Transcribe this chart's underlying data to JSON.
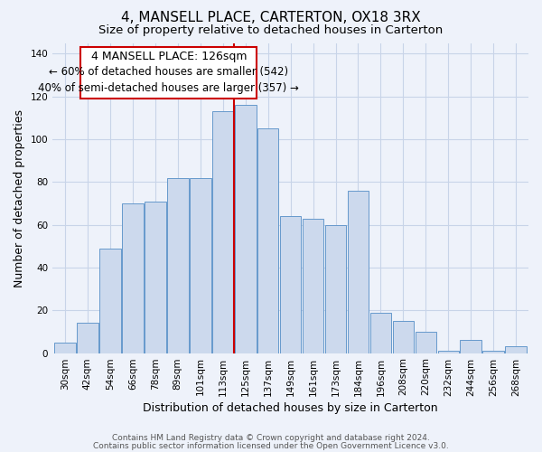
{
  "title": "4, MANSELL PLACE, CARTERTON, OX18 3RX",
  "subtitle": "Size of property relative to detached houses in Carterton",
  "xlabel": "Distribution of detached houses by size in Carterton",
  "ylabel": "Number of detached properties",
  "categories": [
    "30sqm",
    "42sqm",
    "54sqm",
    "66sqm",
    "78sqm",
    "89sqm",
    "101sqm",
    "113sqm",
    "125sqm",
    "137sqm",
    "149sqm",
    "161sqm",
    "173sqm",
    "184sqm",
    "196sqm",
    "208sqm",
    "220sqm",
    "232sqm",
    "244sqm",
    "256sqm",
    "268sqm"
  ],
  "values": [
    5,
    14,
    49,
    70,
    71,
    82,
    82,
    113,
    116,
    105,
    64,
    63,
    60,
    76,
    19,
    15,
    10,
    1,
    6,
    1,
    3
  ],
  "bar_color": "#ccd9ed",
  "bar_edge_color": "#6699cc",
  "reference_line_x": 7.5,
  "reference_line_color": "#cc0000",
  "ylim": [
    0,
    145
  ],
  "yticks": [
    0,
    20,
    40,
    60,
    80,
    100,
    120,
    140
  ],
  "annotation_title": "4 MANSELL PLACE: 126sqm",
  "annotation_line1": "← 60% of detached houses are smaller (542)",
  "annotation_line2": "40% of semi-detached houses are larger (357) →",
  "annotation_box_edge_color": "#cc0000",
  "footer_line1": "Contains HM Land Registry data © Crown copyright and database right 2024.",
  "footer_line2": "Contains public sector information licensed under the Open Government Licence v3.0.",
  "bg_color": "#eef2fa",
  "title_fontsize": 11,
  "subtitle_fontsize": 9.5,
  "axis_label_fontsize": 9,
  "tick_fontsize": 7.5,
  "annotation_title_fontsize": 9,
  "annotation_body_fontsize": 8.5,
  "footer_fontsize": 6.5
}
